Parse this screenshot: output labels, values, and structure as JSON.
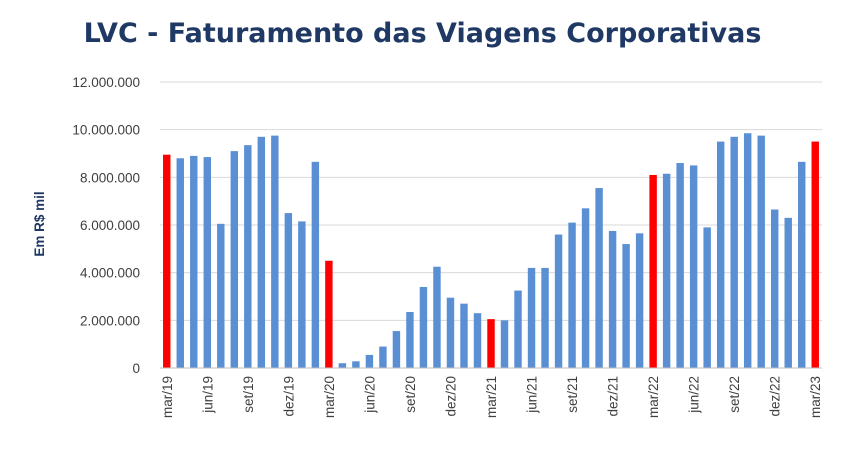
{
  "chart_data": {
    "type": "bar",
    "title": "LVC - Faturamento das Viagens Corporativas",
    "xlabel": "",
    "ylabel": "Em R$ mil",
    "ylim": [
      0,
      12000000
    ],
    "yticks": [
      0,
      2000000,
      4000000,
      6000000,
      8000000,
      10000000,
      12000000
    ],
    "ytick_labels": [
      "0",
      "2.000.000",
      "4.000.000",
      "6.000.000",
      "8.000.000",
      "10.000.000",
      "12.000.000"
    ],
    "grid": true,
    "colors": {
      "default": "#5b8fd4",
      "highlight": "#ff0000"
    },
    "categories": [
      "mar/19",
      "abr/19",
      "mai/19",
      "jun/19",
      "jul/19",
      "ago/19",
      "set/19",
      "out/19",
      "nov/19",
      "dez/19",
      "jan/20",
      "fev/20",
      "mar/20",
      "abr/20",
      "mai/20",
      "jun/20",
      "jul/20",
      "ago/20",
      "set/20",
      "out/20",
      "nov/20",
      "dez/20",
      "jan/21",
      "fev/21",
      "mar/21",
      "abr/21",
      "mai/21",
      "jun/21",
      "jul/21",
      "ago/21",
      "set/21",
      "out/21",
      "nov/21",
      "dez/21",
      "jan/22",
      "fev/22",
      "mar/22",
      "abr/22",
      "mai/22",
      "jun/22",
      "jul/22",
      "ago/22",
      "set/22",
      "out/22",
      "nov/22",
      "dez/22",
      "jan/23",
      "fev/23",
      "mar/23"
    ],
    "x_tick_labels": [
      "mar/19",
      "jun/19",
      "set/19",
      "dez/19",
      "mar/20",
      "jun/20",
      "set/20",
      "dez/20",
      "mar/21",
      "jun/21",
      "set/21",
      "dez/21",
      "mar/22",
      "jun/22",
      "set/22",
      "dez/22",
      "mar/23"
    ],
    "values": [
      8950000,
      8800000,
      8900000,
      8850000,
      6050000,
      9100000,
      9350000,
      9700000,
      9750000,
      6500000,
      6150000,
      8650000,
      4500000,
      200000,
      280000,
      550000,
      900000,
      1550000,
      2350000,
      3400000,
      4250000,
      2950000,
      2700000,
      2300000,
      2050000,
      2000000,
      3250000,
      4200000,
      4200000,
      5600000,
      6100000,
      6700000,
      7550000,
      5750000,
      5200000,
      5650000,
      8100000,
      8150000,
      8600000,
      8500000,
      5900000,
      9500000,
      9700000,
      9850000,
      9750000,
      6650000,
      6300000,
      8650000,
      9500000
    ],
    "highlight_categories": [
      "mar/19",
      "mar/20",
      "mar/21",
      "mar/22",
      "mar/23"
    ]
  }
}
